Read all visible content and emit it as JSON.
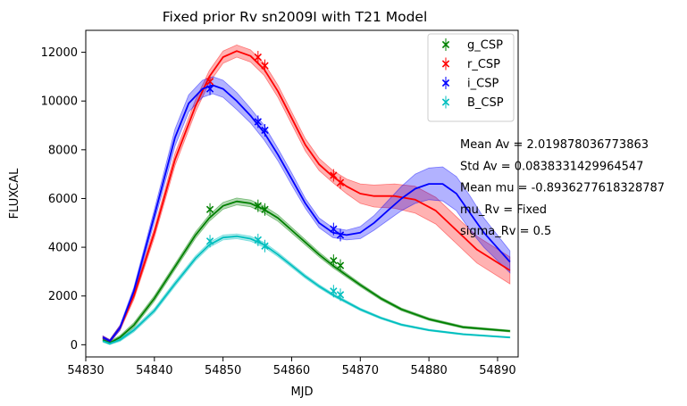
{
  "chart_data": {
    "type": "line",
    "title": "Fixed prior Rv sn2009I with T21 Model",
    "xlabel": "MJD",
    "ylabel": "FLUXCAL",
    "xlim": [
      54830,
      54893
    ],
    "ylim": [
      -500,
      12900
    ],
    "xticks": [
      54830,
      54840,
      54850,
      54860,
      54870,
      54880,
      54890
    ],
    "yticks": [
      0,
      2000,
      4000,
      6000,
      8000,
      10000,
      12000
    ],
    "grid": false,
    "legend_position": "top-right",
    "series": [
      {
        "name": "g_CSP",
        "color": "#008000",
        "observations": [
          {
            "x": 54848.1,
            "y": 5550
          },
          {
            "x": 54855.1,
            "y": 5700
          },
          {
            "x": 54856.1,
            "y": 5550
          },
          {
            "x": 54866.1,
            "y": 3450
          },
          {
            "x": 54867.1,
            "y": 3250
          }
        ],
        "model": {
          "x": [
            54832.5,
            54833.5,
            54835,
            54837,
            54840,
            54843,
            54846,
            54848,
            54850,
            54852,
            54854,
            54856,
            54858,
            54860,
            54862,
            54864,
            54866,
            54868,
            54870,
            54873,
            54876,
            54880,
            54885,
            54891.8
          ],
          "y": [
            200,
            80,
            300,
            800,
            1900,
            3200,
            4500,
            5200,
            5700,
            5880,
            5800,
            5550,
            5200,
            4700,
            4200,
            3700,
            3250,
            2850,
            2450,
            1900,
            1450,
            1050,
            720,
            560
          ],
          "band": [
            60,
            60,
            80,
            100,
            110,
            120,
            130,
            130,
            140,
            140,
            140,
            140,
            130,
            120,
            110,
            100,
            90,
            80,
            70,
            60,
            55,
            50,
            45,
            40
          ]
        }
      },
      {
        "name": "r_CSP",
        "color": "#ff0000",
        "observations": [
          {
            "x": 54848.1,
            "y": 10800
          },
          {
            "x": 54855.1,
            "y": 11800
          },
          {
            "x": 54856.1,
            "y": 11450
          },
          {
            "x": 54866.1,
            "y": 6950
          },
          {
            "x": 54867.1,
            "y": 6650
          }
        ],
        "model": {
          "x": [
            54832.5,
            54833.5,
            54835,
            54837,
            54840,
            54843,
            54846,
            54848,
            54850,
            54852,
            54854,
            54856,
            54858,
            54860,
            54862,
            54864,
            54866,
            54868,
            54870,
            54872,
            54875,
            54878,
            54881,
            54884,
            54887,
            54891.8
          ],
          "y": [
            300,
            150,
            700,
            2000,
            4600,
            7600,
            9800,
            11000,
            11800,
            12050,
            11850,
            11300,
            10400,
            9300,
            8200,
            7400,
            6900,
            6500,
            6200,
            6100,
            6100,
            5950,
            5500,
            4700,
            3900,
            3050
          ],
          "band": [
            60,
            60,
            100,
            150,
            200,
            250,
            250,
            250,
            250,
            250,
            250,
            250,
            250,
            250,
            250,
            250,
            250,
            300,
            400,
            450,
            500,
            550,
            550,
            550,
            550,
            550
          ]
        }
      },
      {
        "name": "i_CSP",
        "color": "#0000ff",
        "observations": [
          {
            "x": 54848.1,
            "y": 10500
          },
          {
            "x": 54855.1,
            "y": 9150
          },
          {
            "x": 54856.1,
            "y": 8800
          },
          {
            "x": 54866.1,
            "y": 4750
          },
          {
            "x": 54867.1,
            "y": 4500
          }
        ],
        "model": {
          "x": [
            54832.5,
            54833.5,
            54835,
            54837,
            54840,
            54843,
            54845,
            54847,
            54848.5,
            54850,
            54852,
            54854,
            54856,
            54858,
            54860,
            54862,
            54864,
            54866,
            54868,
            54870,
            54872,
            54874,
            54876,
            54878,
            54880,
            54882,
            54884,
            54886,
            54888,
            54891.8
          ],
          "y": [
            300,
            150,
            700,
            2200,
            5300,
            8500,
            9900,
            10500,
            10650,
            10500,
            10000,
            9400,
            8700,
            7800,
            6800,
            5800,
            5000,
            4600,
            4500,
            4600,
            5000,
            5500,
            6000,
            6400,
            6600,
            6600,
            6200,
            5400,
            4600,
            3400
          ],
          "band": [
            60,
            60,
            100,
            150,
            250,
            350,
            350,
            350,
            350,
            350,
            350,
            300,
            300,
            250,
            250,
            200,
            200,
            200,
            200,
            250,
            300,
            400,
            500,
            600,
            650,
            700,
            700,
            700,
            600,
            450
          ]
        }
      },
      {
        "name": "B_CSP",
        "color": "#00bfbf",
        "observations": [
          {
            "x": 54848.1,
            "y": 4250
          },
          {
            "x": 54855.1,
            "y": 4300
          },
          {
            "x": 54856.1,
            "y": 4050
          },
          {
            "x": 54866.1,
            "y": 2200
          },
          {
            "x": 54867.1,
            "y": 2050
          }
        ],
        "model": {
          "x": [
            54832.5,
            54833.5,
            54835,
            54837,
            54840,
            54843,
            54846,
            54848,
            54850,
            54852,
            54854,
            54856,
            54858,
            54860,
            54862,
            54864,
            54866,
            54868,
            54870,
            54873,
            54876,
            54880,
            54885,
            54891.8
          ],
          "y": [
            150,
            50,
            200,
            600,
            1400,
            2500,
            3550,
            4100,
            4400,
            4450,
            4350,
            4100,
            3700,
            3250,
            2800,
            2400,
            2050,
            1750,
            1450,
            1100,
            820,
            600,
            430,
            300
          ],
          "band": [
            50,
            50,
            60,
            80,
            90,
            100,
            100,
            100,
            100,
            100,
            100,
            100,
            90,
            80,
            75,
            70,
            60,
            55,
            50,
            45,
            40,
            35,
            30,
            25
          ]
        }
      }
    ],
    "annotations": [
      "Mean Av = 2.019878036773863",
      "Std Av = 0.0838331429964547",
      "Mean mu = -0.8936277618328787",
      "mu_Rv = Fixed",
      "sigma_Rv = 0.5"
    ]
  }
}
